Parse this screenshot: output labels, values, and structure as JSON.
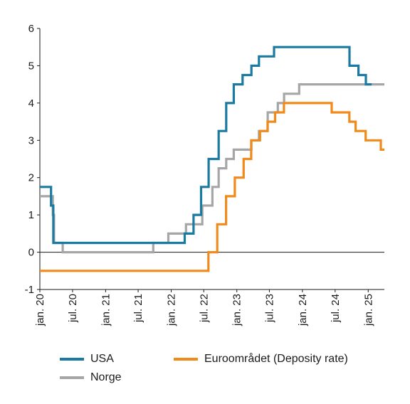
{
  "chart_data": {
    "type": "line",
    "step": true,
    "title": "",
    "xlabel": "",
    "ylabel": "",
    "ylim": [
      -1,
      6
    ],
    "xlim": [
      "2020-01-01",
      "2025-04-01"
    ],
    "yticks": [
      "-1",
      "0",
      "1",
      "2",
      "3",
      "4",
      "5",
      "6"
    ],
    "xticks": [
      {
        "date": "2020-01-01",
        "label": "jan. 20"
      },
      {
        "date": "2020-07-01",
        "label": "jul. 20"
      },
      {
        "date": "2021-01-01",
        "label": "jan. 21"
      },
      {
        "date": "2021-07-01",
        "label": "jul. 21"
      },
      {
        "date": "2022-01-01",
        "label": "jan. 22"
      },
      {
        "date": "2022-07-01",
        "label": "jul. 22"
      },
      {
        "date": "2023-01-01",
        "label": "jan. 23"
      },
      {
        "date": "2023-07-01",
        "label": "jul. 23"
      },
      {
        "date": "2024-01-01",
        "label": "jan. 24"
      },
      {
        "date": "2024-07-01",
        "label": "jul. 24"
      },
      {
        "date": "2025-01-01",
        "label": "jan. 25"
      }
    ],
    "legend_position": "bottom",
    "series": [
      {
        "name": "Norge",
        "color": "#a6a6a6",
        "points": [
          [
            "2020-01-01",
            1.5
          ],
          [
            "2020-03-13",
            1.0
          ],
          [
            "2020-03-20",
            0.25
          ],
          [
            "2020-05-07",
            0.0
          ],
          [
            "2021-09-23",
            0.25
          ],
          [
            "2021-12-16",
            0.5
          ],
          [
            "2022-03-24",
            0.75
          ],
          [
            "2022-06-23",
            1.25
          ],
          [
            "2022-08-18",
            1.75
          ],
          [
            "2022-09-22",
            2.25
          ],
          [
            "2022-11-03",
            2.5
          ],
          [
            "2022-12-15",
            2.75
          ],
          [
            "2023-03-23",
            3.0
          ],
          [
            "2023-05-04",
            3.25
          ],
          [
            "2023-06-22",
            3.75
          ],
          [
            "2023-08-17",
            4.0
          ],
          [
            "2023-09-21",
            4.25
          ],
          [
            "2023-12-14",
            4.5
          ],
          [
            "2025-04-01",
            4.5
          ]
        ]
      },
      {
        "name": "USA",
        "color": "#1b7aa0",
        "points": [
          [
            "2020-01-01",
            1.75
          ],
          [
            "2020-03-03",
            1.25
          ],
          [
            "2020-03-16",
            0.25
          ],
          [
            "2022-03-17",
            0.5
          ],
          [
            "2022-05-05",
            1.0
          ],
          [
            "2022-06-16",
            1.75
          ],
          [
            "2022-07-28",
            2.5
          ],
          [
            "2022-09-22",
            3.25
          ],
          [
            "2022-11-03",
            4.0
          ],
          [
            "2022-12-15",
            4.5
          ],
          [
            "2023-02-02",
            4.75
          ],
          [
            "2023-03-23",
            5.0
          ],
          [
            "2023-05-04",
            5.25
          ],
          [
            "2023-07-27",
            5.5
          ],
          [
            "2024-09-19",
            5.0
          ],
          [
            "2024-11-08",
            4.75
          ],
          [
            "2024-12-19",
            4.5
          ],
          [
            "2025-01-20",
            4.5
          ]
        ]
      },
      {
        "name": "Euroområdet (Deposity rate)",
        "color": "#f08a1a",
        "points": [
          [
            "2020-01-01",
            -0.5
          ],
          [
            "2022-07-27",
            0.0
          ],
          [
            "2022-09-14",
            0.75
          ],
          [
            "2022-11-02",
            1.5
          ],
          [
            "2022-12-21",
            2.0
          ],
          [
            "2023-02-08",
            2.5
          ],
          [
            "2023-03-22",
            3.0
          ],
          [
            "2023-05-10",
            3.25
          ],
          [
            "2023-06-21",
            3.5
          ],
          [
            "2023-08-02",
            3.75
          ],
          [
            "2023-09-20",
            4.0
          ],
          [
            "2024-06-12",
            3.75
          ],
          [
            "2024-09-18",
            3.5
          ],
          [
            "2024-10-23",
            3.25
          ],
          [
            "2024-12-18",
            3.0
          ],
          [
            "2025-03-12",
            2.75
          ],
          [
            "2025-04-01",
            2.75
          ]
        ]
      }
    ]
  },
  "legend": {
    "usa": "USA",
    "euro": "Euroområdet (Deposity rate)",
    "norge": "Norge"
  },
  "colors": {
    "usa": "#1b7aa0",
    "euro": "#f08a1a",
    "norge": "#a6a6a6",
    "axis": "#1a1a1a"
  }
}
